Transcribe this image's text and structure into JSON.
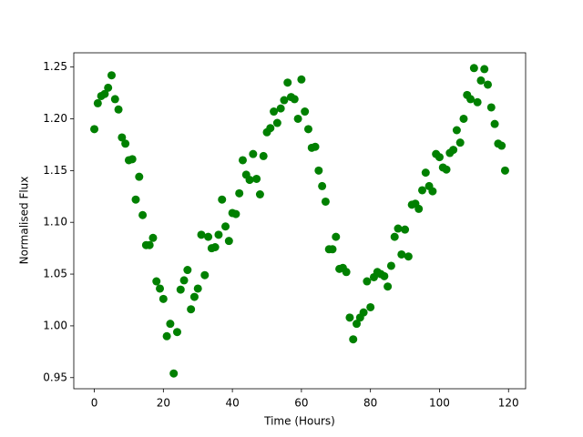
{
  "chart_data": {
    "type": "scatter",
    "xlabel": "Time (Hours)",
    "ylabel": "Normalised Flux",
    "x": [
      0,
      1,
      2,
      3,
      4,
      5,
      6,
      7,
      8,
      9,
      10,
      11,
      12,
      13,
      14,
      15,
      16,
      17,
      18,
      19,
      20,
      21,
      22,
      23,
      24,
      25,
      26,
      27,
      28,
      29,
      30,
      31,
      32,
      33,
      34,
      35,
      36,
      37,
      38,
      39,
      40,
      41,
      42,
      43,
      44,
      45,
      46,
      47,
      48,
      49,
      50,
      51,
      52,
      53,
      54,
      55,
      56,
      57,
      58,
      59,
      60,
      61,
      62,
      63,
      64,
      65,
      66,
      67,
      68,
      69,
      70,
      71,
      72,
      73,
      74,
      75,
      76,
      77,
      78,
      79,
      80,
      81,
      82,
      83,
      84,
      85,
      86,
      87,
      88,
      89,
      90,
      91,
      92,
      93,
      94,
      95,
      96,
      97,
      98,
      99,
      100,
      101,
      102,
      103,
      104,
      105,
      106,
      107,
      108,
      109,
      110,
      111,
      112,
      113,
      114,
      115,
      116,
      117,
      118,
      119
    ],
    "series": [
      {
        "color": "#008000",
        "values": [
          1.19,
          1.215,
          1.222,
          1.224,
          1.23,
          1.242,
          1.219,
          1.209,
          1.182,
          1.176,
          1.16,
          1.161,
          1.122,
          1.144,
          1.107,
          1.078,
          1.078,
          1.085,
          1.043,
          1.036,
          1.026,
          0.99,
          1.002,
          0.954,
          0.994,
          1.035,
          1.044,
          1.054,
          1.016,
          1.028,
          1.036,
          1.088,
          1.049,
          1.086,
          1.075,
          1.076,
          1.088,
          1.122,
          1.096,
          1.082,
          1.109,
          1.108,
          1.128,
          1.16,
          1.146,
          1.141,
          1.166,
          1.142,
          1.127,
          1.164,
          1.187,
          1.191,
          1.207,
          1.196,
          1.21,
          1.218,
          1.235,
          1.221,
          1.219,
          1.2,
          1.238,
          1.207,
          1.19,
          1.172,
          1.173,
          1.15,
          1.135,
          1.12,
          1.074,
          1.074,
          1.086,
          1.055,
          1.056,
          1.052,
          1.008,
          0.987,
          1.002,
          1.008,
          1.013,
          1.043,
          1.018,
          1.047,
          1.052,
          1.05,
          1.048,
          1.038,
          1.058,
          1.086,
          1.094,
          1.069,
          1.093,
          1.067,
          1.117,
          1.118,
          1.113,
          1.131,
          1.148,
          1.135,
          1.13,
          1.166,
          1.163,
          1.153,
          1.151,
          1.167,
          1.17,
          1.189,
          1.177,
          1.2,
          1.223,
          1.219,
          1.249,
          1.216,
          1.237,
          1.248,
          1.233,
          1.211,
          1.195,
          1.176,
          1.174,
          1.15
        ]
      }
    ],
    "xlim": [
      -5.95,
      124.95
    ],
    "xticks": [
      0,
      20,
      40,
      60,
      80,
      100,
      120
    ],
    "ylim": [
      0.93925,
      1.26375
    ],
    "yticks": [
      0.95,
      {
        "value": 1.0,
        "label": "1.00"
      },
      1.05,
      {
        "value": 1.1,
        "label": "1.10"
      },
      1.15,
      {
        "value": 1.2,
        "label": "1.20"
      },
      1.25
    ]
  }
}
